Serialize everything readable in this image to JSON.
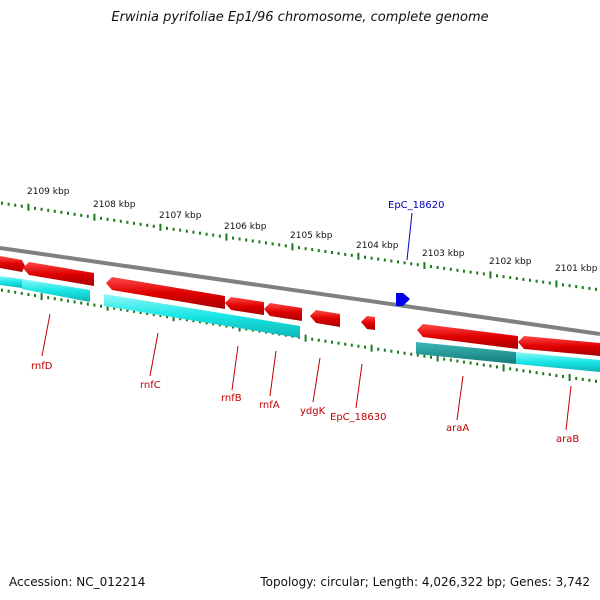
{
  "title": "Erwinia pyrifoliae Ep1/96 chromosome, complete genome",
  "footer": {
    "accession": "Accession: NC_012214",
    "summary": "Topology: circular; Length: 4,026,322 bp; Genes: 3,742"
  },
  "colors": {
    "forward_gene": "#e00000",
    "reverse_gene": "#00e0e0",
    "highlight_gene": "#0000ee",
    "backbone": "#808080",
    "tick": "#1a7a1a",
    "label": "#c00000",
    "highlight_label": "#0000bb"
  },
  "kbp_labels": [
    "2109 kbp",
    "2108 kbp",
    "2107 kbp",
    "2106 kbp",
    "2105 kbp",
    "2104 kbp",
    "2103 kbp",
    "2102 kbp",
    "2101 kbp"
  ],
  "genes": [
    {
      "name": "rnfD",
      "strand": "forward"
    },
    {
      "name": "rnfC",
      "strand": "forward"
    },
    {
      "name": "rnfB",
      "strand": "forward"
    },
    {
      "name": "rnfA",
      "strand": "forward"
    },
    {
      "name": "ydgK",
      "strand": "forward"
    },
    {
      "name": "EpC_18630",
      "strand": "forward"
    },
    {
      "name": "EpC_18620",
      "strand": "forward",
      "highlight": true
    },
    {
      "name": "araA",
      "strand": "reverse"
    },
    {
      "name": "araB",
      "strand": "reverse"
    }
  ]
}
